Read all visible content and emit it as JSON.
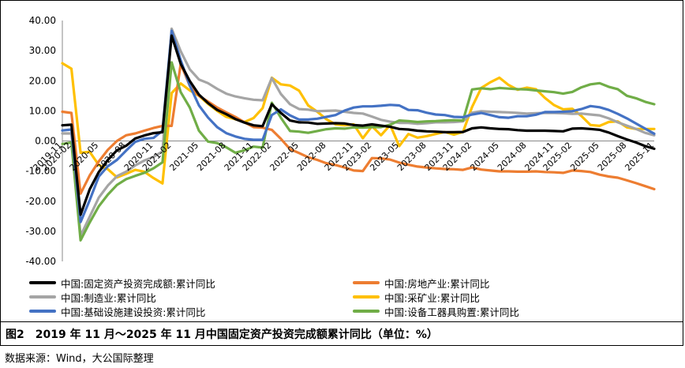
{
  "chart_data": {
    "type": "line",
    "ylim": [
      -40,
      40
    ],
    "yticks": [
      "40.00",
      "30.00",
      "20.00",
      "10.00",
      "0.00",
      "-10.00",
      "-20.00",
      "-30.00",
      "-40.00"
    ],
    "ytick_values": [
      40,
      30,
      20,
      10,
      0,
      -10,
      -20,
      -30,
      -40
    ],
    "x": [
      "2019-11",
      "2020-02",
      "2020-03",
      "2020-04",
      "2020-05",
      "2020-06",
      "2020-07",
      "2020-08",
      "2020-09",
      "2020-10",
      "2020-11",
      "2020-12",
      "2021-02",
      "2021-03",
      "2021-04",
      "2021-05",
      "2021-06",
      "2021-07",
      "2021-08",
      "2021-09",
      "2021-10",
      "2021-11",
      "2021-12",
      "2022-02",
      "2022-03",
      "2022-04",
      "2022-05",
      "2022-06",
      "2022-07",
      "2022-08",
      "2022-09",
      "2022-10",
      "2022-11",
      "2022-12",
      "2023-02",
      "2023-03",
      "2023-04",
      "2023-05",
      "2023-06",
      "2023-07",
      "2023-08",
      "2023-09",
      "2023-10",
      "2023-11",
      "2023-12",
      "2024-02",
      "2024-03",
      "2024-04",
      "2024-05",
      "2024-06",
      "2024-07",
      "2024-08",
      "2024-09",
      "2024-10",
      "2024-11",
      "2024-12",
      "2025-02",
      "2025-03",
      "2025-04",
      "2025-05",
      "2025-06",
      "2025-07",
      "2025-08",
      "2025-09",
      "2025-10",
      "2025-11"
    ],
    "xtick_labels": [
      "2019-11",
      "2020-02",
      "2020-05",
      "2020-08",
      "2020-11",
      "2021-02",
      "2021-05",
      "2021-08",
      "2021-11",
      "2022-02",
      "2022-05",
      "2022-08",
      "2022-11",
      "2023-02",
      "2023-05",
      "2023-08",
      "2023-11",
      "2024-02",
      "2024-05",
      "2024-08",
      "2024-11",
      "2025-02",
      "2025-05",
      "2025-08",
      "2025-11"
    ],
    "series": [
      {
        "name": "中国:固定资产投资完成额:累计同比",
        "color": "#000000",
        "values": [
          5.2,
          5.4,
          -24.5,
          -16.1,
          -10.3,
          -6.3,
          -3.1,
          -1.6,
          0.8,
          1.8,
          2.6,
          2.9,
          35.0,
          25.6,
          19.9,
          15.4,
          12.6,
          10.3,
          8.9,
          7.3,
          6.1,
          5.2,
          4.9,
          12.2,
          9.3,
          6.8,
          6.2,
          6.1,
          5.7,
          5.8,
          5.9,
          5.8,
          5.3,
          5.1,
          5.5,
          5.1,
          4.7,
          4.0,
          3.8,
          3.4,
          3.2,
          3.1,
          2.9,
          2.9,
          3.0,
          4.2,
          4.5,
          4.2,
          4.0,
          3.9,
          3.6,
          3.4,
          3.4,
          3.4,
          3.3,
          3.2,
          4.1,
          4.2,
          4.0,
          3.7,
          2.8,
          1.6,
          0.5,
          -0.5,
          -1.7,
          -2.6
        ]
      },
      {
        "name": "中国:房地产业:累计同比",
        "color": "#ed7d31",
        "values": [
          9.7,
          9.3,
          -17.5,
          -11.5,
          -6.8,
          -2.9,
          0.0,
          1.9,
          2.5,
          3.4,
          4.3,
          5.0,
          5.0,
          25.6,
          18.3,
          15.0,
          13.1,
          11.1,
          9.5,
          8.0,
          6.2,
          4.6,
          4.4,
          3.7,
          0.7,
          -2.7,
          -4.0,
          -5.4,
          -6.3,
          -7.4,
          -8.0,
          -8.8,
          -9.8,
          -10.0,
          -5.7,
          -5.8,
          -6.2,
          -7.2,
          -7.9,
          -8.5,
          -8.8,
          -9.1,
          -9.3,
          -9.4,
          -9.6,
          -8.8,
          -9.5,
          -9.8,
          -10.1,
          -10.1,
          -10.2,
          -10.2,
          -10.1,
          -10.3,
          -10.4,
          -10.6,
          -9.8,
          -10.0,
          -10.3,
          -11.2,
          -11.8,
          -12.2,
          -13.1,
          -14.0,
          -15.0,
          -16.0
        ]
      },
      {
        "name": "中国:制造业:累计同比",
        "color": "#a5a5a5",
        "values": [
          2.5,
          2.5,
          -31.5,
          -25.2,
          -18.8,
          -14.8,
          -11.7,
          -10.2,
          -8.1,
          -6.5,
          -5.3,
          -3.5,
          37.3,
          29.8,
          23.8,
          20.4,
          19.2,
          17.3,
          15.7,
          14.8,
          14.2,
          13.7,
          13.5,
          20.9,
          15.6,
          12.2,
          10.6,
          10.4,
          9.9,
          10.0,
          10.1,
          9.7,
          9.3,
          9.1,
          8.1,
          7.0,
          6.4,
          6.0,
          6.0,
          5.7,
          5.9,
          6.2,
          6.2,
          6.3,
          6.5,
          9.4,
          9.9,
          9.7,
          9.6,
          9.5,
          9.3,
          9.1,
          9.2,
          9.3,
          9.3,
          9.2,
          9.0,
          9.1,
          8.8,
          8.5,
          7.5,
          6.2,
          5.1,
          4.0,
          2.7,
          1.9
        ]
      },
      {
        "name": "中国:采矿业:累计同比",
        "color": "#ffc000",
        "values": [
          25.8,
          24.0,
          -3.9,
          -3.6,
          -8.0,
          -9.4,
          -12.1,
          -10.9,
          -9.6,
          -10.2,
          -12.3,
          -14.1,
          15.9,
          19.1,
          16.8,
          15.0,
          12.3,
          10.0,
          8.0,
          7.2,
          6.3,
          7.6,
          10.9,
          21.0,
          18.8,
          18.4,
          16.7,
          11.8,
          9.7,
          7.2,
          5.5,
          5.2,
          5.5,
          0.9,
          4.9,
          1.9,
          5.3,
          -1.7,
          2.3,
          1.1,
          1.6,
          2.3,
          3.0,
          2.1,
          3.0,
          11.3,
          17.6,
          19.5,
          21.0,
          18.6,
          17.0,
          17.7,
          17.2,
          14.3,
          11.9,
          10.5,
          10.7,
          8.3,
          5.3,
          5.0,
          6.3,
          6.5,
          4.5,
          4.0,
          4.0,
          4.0
        ]
      },
      {
        "name": "中国:基础设施建设投资:累计同比",
        "color": "#4472c4",
        "values": [
          3.5,
          3.8,
          -26.9,
          -19.7,
          -11.8,
          -8.4,
          -6.3,
          -3.2,
          -0.3,
          0.7,
          1.0,
          3.4,
          36.6,
          26.8,
          18.4,
          11.8,
          7.8,
          4.6,
          2.6,
          1.5,
          0.7,
          0.4,
          0.4,
          8.6,
          10.5,
          8.5,
          7.1,
          7.1,
          7.4,
          8.0,
          8.6,
          10.1,
          11.1,
          11.5,
          11.5,
          11.7,
          12.0,
          11.8,
          10.3,
          10.2,
          9.4,
          8.8,
          8.6,
          8.0,
          7.9,
          8.8,
          9.3,
          8.6,
          7.9,
          7.7,
          8.2,
          8.2,
          8.7,
          9.6,
          9.6,
          9.7,
          9.9,
          10.6,
          11.6,
          11.2,
          10.3,
          9.0,
          7.5,
          5.8,
          4.1,
          2.4
        ]
      },
      {
        "name": "中国:设备工器具购置:累计同比",
        "color": "#70ad47",
        "values": [
          -1.0,
          -0.5,
          -33.0,
          -27.1,
          -21.7,
          -17.8,
          -14.6,
          -12.7,
          -11.6,
          -10.6,
          -9.1,
          -7.1,
          26.1,
          16.2,
          11.1,
          3.4,
          -0.2,
          -0.7,
          -2.1,
          -3.9,
          -3.1,
          -1.9,
          -2.2,
          12.7,
          7.7,
          3.3,
          3.1,
          2.7,
          3.3,
          3.9,
          4.2,
          4.1,
          4.5,
          4.4,
          4.6,
          4.6,
          5.4,
          6.8,
          6.6,
          6.3,
          6.5,
          6.6,
          6.8,
          6.9,
          6.8,
          17.1,
          17.5,
          17.2,
          17.6,
          17.4,
          17.2,
          17.1,
          16.8,
          16.5,
          16.2,
          15.7,
          16.3,
          17.8,
          18.8,
          19.2,
          18.0,
          17.2,
          15.0,
          14.2,
          13.0,
          12.2
        ]
      }
    ]
  },
  "caption": {
    "label": "图2",
    "text": "2019 年 11 月～2025 年 11 月中国固定资产投资完成额累计同比（单位：%）"
  },
  "source": {
    "text": "数据来源：Wind，大公国际整理"
  }
}
